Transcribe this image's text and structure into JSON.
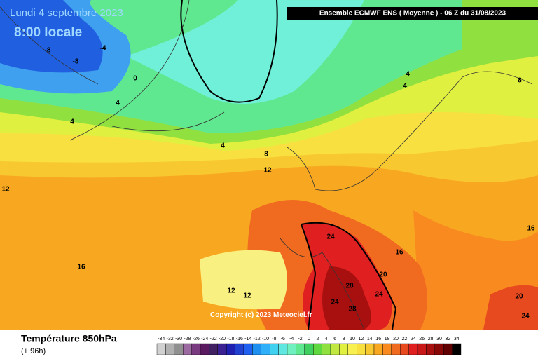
{
  "header": {
    "date": "Lundi 4 septembre 2023",
    "time": "8:00 locale",
    "model": "Ensemble ECMWF ENS  ( Moyenne )  -  06 Z du 31/08/2023"
  },
  "contour_labels": [
    "-8",
    "-8",
    "-4",
    "0",
    "4",
    "4",
    "4",
    "8",
    "12",
    "12",
    "16",
    "12",
    "12",
    "24",
    "16",
    "20",
    "28",
    "24",
    "24",
    "28",
    "20",
    "24",
    "16",
    "8",
    "4",
    "4"
  ],
  "copyright": "Copyright (c) 2023 Meteociel.fr",
  "footer": {
    "title": "Température 850hPa",
    "lead": "(+ 96h)"
  },
  "scale": {
    "values": [
      -34,
      -32,
      -30,
      -28,
      -26,
      -24,
      -22,
      -20,
      -18,
      -16,
      -14,
      -12,
      -10,
      -8,
      -6,
      -4,
      -2,
      0,
      2,
      4,
      6,
      8,
      10,
      12,
      14,
      16,
      18,
      20,
      22,
      24,
      26,
      28,
      30,
      32,
      34
    ],
    "colors": [
      "#d0d0d0",
      "#b0b0b0",
      "#909090",
      "#9a6aa0",
      "#7a3a80",
      "#5a1a60",
      "#402060",
      "#3a2090",
      "#2020b0",
      "#2040d0",
      "#2060f0",
      "#2090f0",
      "#30b0f8",
      "#40d0f0",
      "#60e8e0",
      "#70f0c0",
      "#60e890",
      "#40d060",
      "#60d840",
      "#90e040",
      "#c0e840",
      "#e0f040",
      "#f8f050",
      "#f8e040",
      "#f8c830",
      "#f8a820",
      "#f88a20",
      "#f06a20",
      "#e84a20",
      "#e02020",
      "#c81818",
      "#a81010",
      "#880808",
      "#600000",
      "#000000"
    ]
  }
}
